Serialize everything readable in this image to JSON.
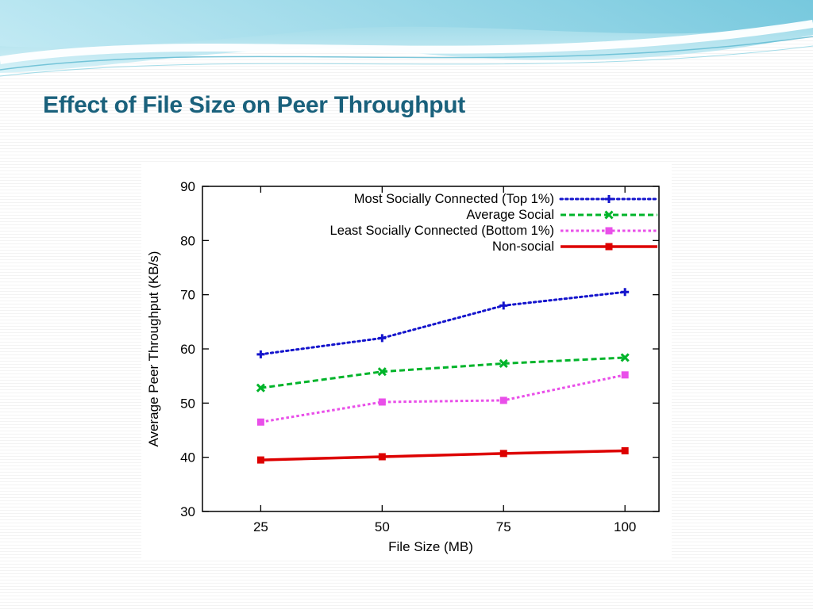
{
  "slide": {
    "title": "Effect of File Size on Peer Throughput",
    "title_color": "#1a617c"
  },
  "chart_data": {
    "type": "line",
    "title": "",
    "xlabel": "File Size (MB)",
    "ylabel": "Average Peer Throughput (KB/s)",
    "x": [
      25,
      50,
      75,
      100
    ],
    "xticks": [
      25,
      50,
      75,
      100
    ],
    "yticks": [
      30,
      40,
      50,
      60,
      70,
      80,
      90
    ],
    "xlim": [
      13,
      107
    ],
    "ylim": [
      30,
      90
    ],
    "grid": false,
    "legend_position": "inside-top-right",
    "series": [
      {
        "name": "Most Socially Connected (Top 1%)",
        "color": "#1414cc",
        "line_style": "dotted",
        "marker": "plus",
        "values": [
          59.0,
          62.0,
          68.0,
          70.5
        ]
      },
      {
        "name": "Average Social",
        "color": "#00b42a",
        "line_style": "dashed",
        "marker": "x",
        "values": [
          52.8,
          55.8,
          57.3,
          58.4
        ]
      },
      {
        "name": "Least Socially Connected (Bottom 1%)",
        "color": "#e94fe9",
        "line_style": "dense-dashed",
        "marker": "square",
        "values": [
          46.5,
          50.2,
          50.5,
          55.2
        ]
      },
      {
        "name": "Non-social",
        "color": "#dd0000",
        "line_style": "solid",
        "marker": "square",
        "values": [
          39.5,
          40.1,
          40.7,
          41.2
        ]
      }
    ]
  }
}
